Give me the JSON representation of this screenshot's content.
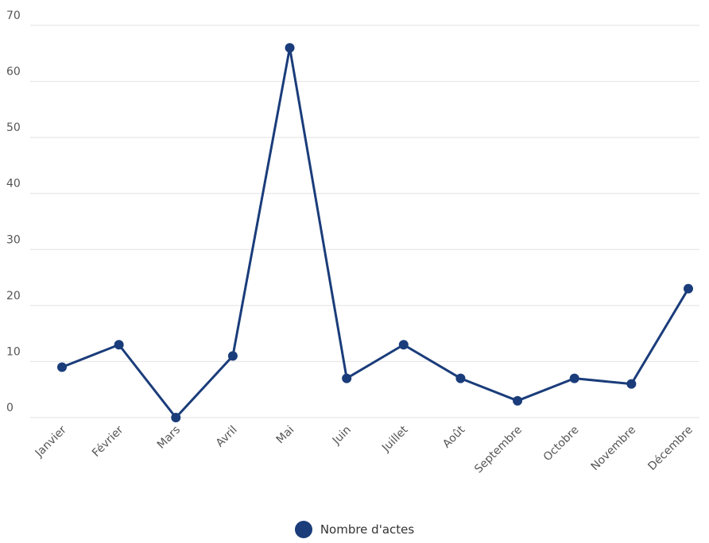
{
  "chart_data": {
    "type": "line",
    "categories": [
      "Janvier",
      "Février",
      "Mars",
      "Avril",
      "Mai",
      "Juin",
      "Juillet",
      "Août",
      "Septembre",
      "Octobre",
      "Novembre",
      "Décembre"
    ],
    "series": [
      {
        "name": "Nombre d'actes",
        "values": [
          9,
          13,
          0,
          11,
          66,
          7,
          13,
          7,
          3,
          7,
          6,
          23
        ],
        "color": "#1a3c7a"
      }
    ],
    "y_ticks": [
      "0",
      "10",
      "20",
      "30",
      "40",
      "50",
      "60",
      "70"
    ],
    "ylim": [
      0,
      70
    ],
    "grid": true,
    "legend_position": "bottom"
  }
}
